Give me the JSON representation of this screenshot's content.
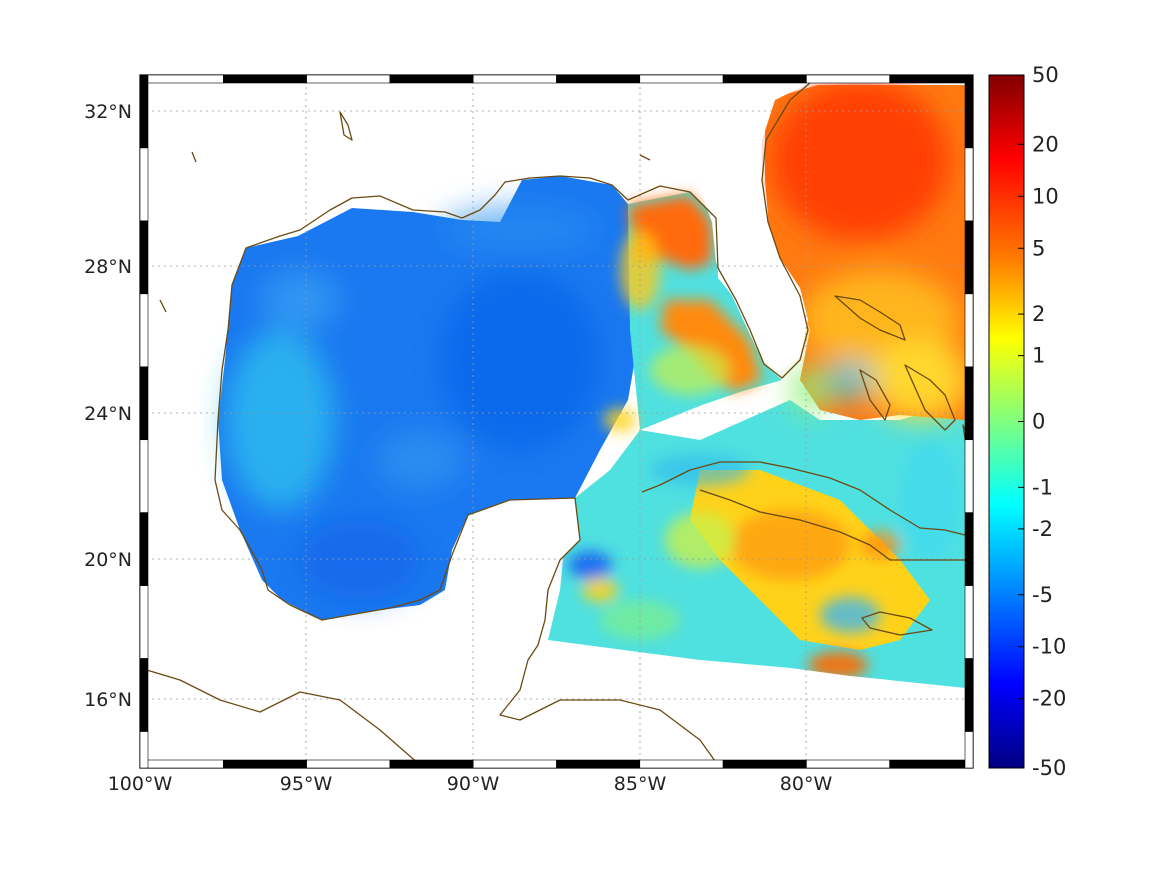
{
  "map": {
    "lon_labels": [
      "100°W",
      "95°W",
      "90°W",
      "85°W",
      "80°W"
    ],
    "lat_labels": [
      "32°N",
      "28°N",
      "24°N",
      "20°N",
      "16°N"
    ],
    "lon_range": [
      -100,
      -75
    ],
    "lat_range": [
      14.3,
      33
    ],
    "lon_ticks": [
      -100,
      -95,
      -90,
      -85,
      -80
    ],
    "lat_ticks": [
      32,
      28,
      24,
      20,
      16
    ],
    "frame_colors": [
      "#000000",
      "#ffffff"
    ],
    "coastline_color": "#6b4a12",
    "grid": true
  },
  "colorbar": {
    "labels": [
      "50",
      "20",
      "10",
      "5",
      "2",
      "1",
      "0",
      "-1",
      "-2",
      "-5",
      "-10",
      "-20",
      "-50"
    ],
    "colormap": "jet",
    "colors": [
      "#800000",
      "#ff0000",
      "#ff8000",
      "#ffff00",
      "#80ff80",
      "#00ffff",
      "#0080ff",
      "#0000ff",
      "#000080"
    ]
  }
}
